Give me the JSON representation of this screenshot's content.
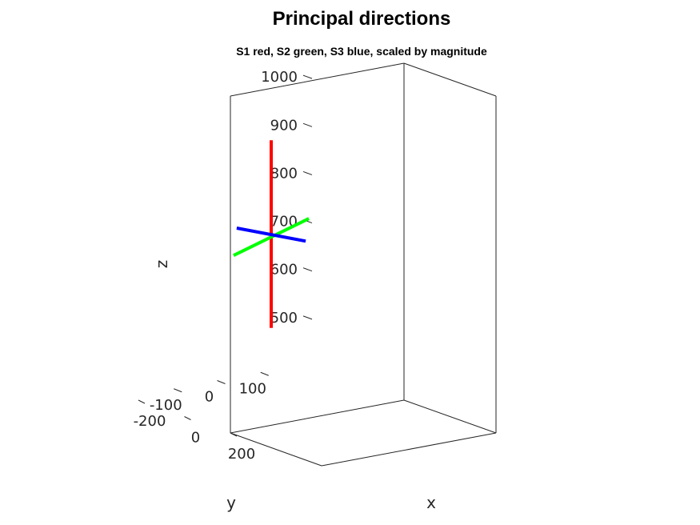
{
  "chart_data": {
    "type": "line",
    "projection": "3d",
    "title": "Principal directions",
    "subtitle": "S1 red, S2 green, S3 blue, scaled by magnitude",
    "xlabel": "x",
    "ylabel": "y",
    "zlabel": "z",
    "xlim": [
      -200,
      200
    ],
    "ylim": [
      -200,
      200
    ],
    "zlim": [
      400,
      1100
    ],
    "xticks": [
      -200,
      0,
      200
    ],
    "yticks": [
      -100,
      0,
      100
    ],
    "zticks": [
      500,
      600,
      700,
      800,
      900,
      1000
    ],
    "grid": false,
    "series": [
      {
        "color": "#ff0000",
        "start": [
          0,
          0,
          550
        ],
        "end": [
          0,
          0,
          940
        ]
      },
      {
        "color": "#00ff00",
        "start": [
          -25,
          100,
          756
        ],
        "end": [
          25,
          -100,
          722
        ]
      },
      {
        "color": "#0000ff",
        "start": [
          -150,
          0,
          732
        ],
        "end": [
          150,
          0,
          756
        ]
      }
    ]
  }
}
